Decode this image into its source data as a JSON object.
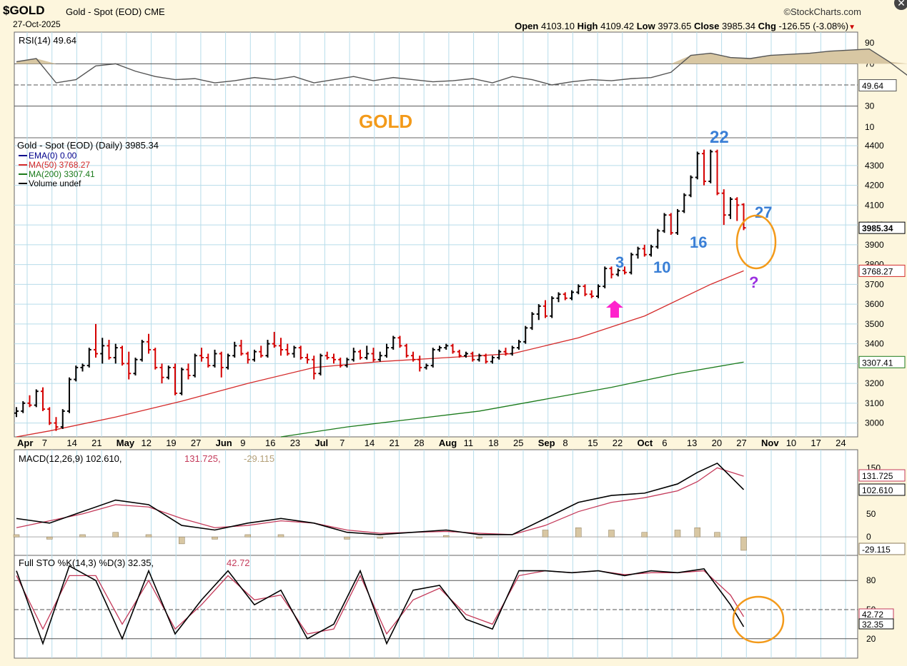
{
  "header": {
    "symbol": "$GOLD",
    "description": "Gold - Spot (EOD)",
    "exchange": "CME",
    "date": "27-Oct-2025",
    "brand": "©StockCharts.com",
    "open_label": "Open",
    "open": "4103.10",
    "high_label": "High",
    "high": "4109.42",
    "low_label": "Low",
    "low": "3973.65",
    "close_label": "Close",
    "close": "3985.34",
    "chg_label": "Chg",
    "chg": "-126.55 (-3.08%)"
  },
  "colors": {
    "background": "#fdf6dd",
    "panel": "#ffffff",
    "grid": "#b7dcea",
    "up_bar": "#000000",
    "down_bar": "#d40000",
    "ma50": "#d42a2a",
    "ma200": "#1a7a1a",
    "ema": "#00008b",
    "annotation_blue": "#3a7fd6",
    "annotation_orange": "#f39a1a",
    "arrow": "#ff22cc",
    "question": "#9b30e0",
    "rsi_fill": "#d8c7a3"
  },
  "chart_data": [
    {
      "type": "line",
      "name": "RSI panel",
      "legend": "RSI(14) 49.64",
      "value_label": "49.64",
      "ylim": [
        0,
        100
      ],
      "yticks": [
        "90",
        "70",
        "50",
        "30",
        "10"
      ],
      "levels": [
        70,
        30
      ],
      "x": [
        0,
        3,
        6,
        9,
        12,
        15,
        18,
        21,
        24,
        27,
        30,
        33,
        36,
        39,
        42,
        45,
        48,
        51,
        54,
        57,
        60,
        63,
        66,
        69,
        72,
        75,
        78,
        81,
        84,
        87,
        90,
        93,
        96,
        99,
        102,
        105,
        108,
        111,
        114,
        117,
        120,
        123,
        126,
        129,
        132,
        135,
        138,
        141,
        144
      ],
      "values": [
        72,
        75,
        52,
        55,
        68,
        70,
        63,
        58,
        55,
        56,
        52,
        54,
        57,
        55,
        58,
        52,
        55,
        58,
        54,
        57,
        55,
        53,
        54,
        56,
        52,
        58,
        55,
        50,
        53,
        55,
        54,
        56,
        57,
        62,
        78,
        80,
        76,
        75,
        78,
        79,
        80,
        82,
        83,
        84,
        72,
        58,
        50,
        52,
        49.64
      ],
      "annotation": "GOLD"
    },
    {
      "type": "line",
      "name": "Price panel",
      "legend_title": "Gold - Spot (EOD) (Daily) 3985.34",
      "legend": [
        "EMA(0) 0.00",
        "MA(50) 3768.27",
        "MA(200) 3307.41",
        "Volume undef"
      ],
      "ylim": [
        2930,
        4440
      ],
      "yticks": [
        "4400",
        "4300",
        "4200",
        "4100",
        "4000",
        "3900",
        "3800",
        "3700",
        "3600",
        "3500",
        "3400",
        "3300",
        "3200",
        "3100",
        "3000"
      ],
      "price_labels": [
        "3985.34",
        "3768.27",
        "3307.41"
      ],
      "x_tick_labels": [
        "Apr",
        "7",
        "14",
        "21",
        "May",
        "12",
        "19",
        "27",
        "Jun",
        "9",
        "16",
        "23",
        "Jul",
        "7",
        "14",
        "21",
        "28",
        "Aug",
        "11",
        "18",
        "25",
        "Sep",
        "8",
        "15",
        "22",
        "Oct",
        "6",
        "13",
        "20",
        "27",
        "Nov",
        "10",
        "17",
        "24"
      ],
      "ohlc": [
        [
          0,
          3050,
          3080,
          3030,
          3060
        ],
        [
          1,
          3060,
          3110,
          3050,
          3100
        ],
        [
          2,
          3100,
          3140,
          3080,
          3090
        ],
        [
          3,
          3090,
          3170,
          3080,
          3160
        ],
        [
          4,
          3160,
          3180,
          3060,
          3070
        ],
        [
          5,
          3070,
          3080,
          2990,
          3000
        ],
        [
          6,
          3000,
          3030,
          2960,
          2980
        ],
        [
          7,
          2980,
          3070,
          2970,
          3060
        ],
        [
          8,
          3060,
          3230,
          3050,
          3220
        ],
        [
          9,
          3220,
          3290,
          3210,
          3280
        ],
        [
          10,
          3280,
          3300,
          3260,
          3290
        ],
        [
          11,
          3290,
          3380,
          3280,
          3370
        ],
        [
          12,
          3370,
          3500,
          3330,
          3350
        ],
        [
          13,
          3350,
          3430,
          3300,
          3390
        ],
        [
          14,
          3390,
          3420,
          3320,
          3330
        ],
        [
          15,
          3330,
          3400,
          3300,
          3380
        ],
        [
          16,
          3380,
          3390,
          3290,
          3300
        ],
        [
          17,
          3300,
          3360,
          3220,
          3250
        ],
        [
          18,
          3250,
          3330,
          3240,
          3320
        ],
        [
          19,
          3320,
          3420,
          3310,
          3410
        ],
        [
          20,
          3410,
          3450,
          3350,
          3370
        ],
        [
          21,
          3370,
          3380,
          3270,
          3280
        ],
        [
          22,
          3280,
          3300,
          3200,
          3230
        ],
        [
          23,
          3230,
          3290,
          3220,
          3280
        ],
        [
          24,
          3280,
          3300,
          3140,
          3150
        ],
        [
          25,
          3150,
          3280,
          3140,
          3270
        ],
        [
          26,
          3270,
          3300,
          3220,
          3240
        ],
        [
          27,
          3240,
          3350,
          3230,
          3340
        ],
        [
          28,
          3340,
          3380,
          3310,
          3330
        ],
        [
          29,
          3330,
          3350,
          3280,
          3290
        ],
        [
          30,
          3290,
          3370,
          3280,
          3350
        ],
        [
          31,
          3350,
          3360,
          3230,
          3280
        ],
        [
          32,
          3280,
          3350,
          3270,
          3340
        ],
        [
          33,
          3340,
          3410,
          3330,
          3390
        ],
        [
          34,
          3390,
          3420,
          3340,
          3350
        ],
        [
          35,
          3350,
          3360,
          3300,
          3320
        ],
        [
          36,
          3320,
          3370,
          3310,
          3360
        ],
        [
          37,
          3360,
          3390,
          3330,
          3340
        ],
        [
          38,
          3340,
          3420,
          3330,
          3400
        ],
        [
          39,
          3400,
          3460,
          3380,
          3390
        ],
        [
          40,
          3390,
          3430,
          3340,
          3370
        ],
        [
          41,
          3370,
          3400,
          3340,
          3350
        ],
        [
          42,
          3350,
          3390,
          3330,
          3380
        ],
        [
          43,
          3380,
          3390,
          3320,
          3330
        ],
        [
          44,
          3330,
          3350,
          3300,
          3320
        ],
        [
          45,
          3320,
          3340,
          3220,
          3250
        ],
        [
          46,
          3250,
          3350,
          3240,
          3340
        ],
        [
          47,
          3340,
          3360,
          3320,
          3330
        ],
        [
          48,
          3330,
          3350,
          3300,
          3320
        ],
        [
          49,
          3320,
          3330,
          3280,
          3290
        ],
        [
          50,
          3290,
          3330,
          3280,
          3320
        ],
        [
          51,
          3320,
          3380,
          3310,
          3360
        ],
        [
          52,
          3360,
          3370,
          3320,
          3330
        ],
        [
          53,
          3330,
          3390,
          3320,
          3350
        ],
        [
          54,
          3350,
          3380,
          3310,
          3320
        ],
        [
          55,
          3320,
          3360,
          3310,
          3340
        ],
        [
          56,
          3340,
          3400,
          3330,
          3380
        ],
        [
          57,
          3380,
          3440,
          3370,
          3430
        ],
        [
          58,
          3430,
          3440,
          3380,
          3390
        ],
        [
          59,
          3390,
          3400,
          3330,
          3340
        ],
        [
          60,
          3340,
          3360,
          3310,
          3320
        ],
        [
          61,
          3320,
          3340,
          3260,
          3280
        ],
        [
          62,
          3280,
          3300,
          3270,
          3290
        ],
        [
          63,
          3290,
          3380,
          3280,
          3370
        ],
        [
          64,
          3370,
          3390,
          3360,
          3380
        ],
        [
          65,
          3380,
          3400,
          3370,
          3390
        ],
        [
          66,
          3390,
          3400,
          3350,
          3360
        ],
        [
          67,
          3360,
          3370,
          3330,
          3340
        ],
        [
          68,
          3340,
          3360,
          3330,
          3350
        ],
        [
          69,
          3350,
          3360,
          3310,
          3320
        ],
        [
          70,
          3320,
          3350,
          3310,
          3340
        ],
        [
          71,
          3340,
          3350,
          3300,
          3310
        ],
        [
          72,
          3310,
          3340,
          3300,
          3330
        ],
        [
          73,
          3330,
          3370,
          3320,
          3360
        ],
        [
          74,
          3360,
          3380,
          3340,
          3350
        ],
        [
          75,
          3350,
          3390,
          3340,
          3380
        ],
        [
          76,
          3380,
          3420,
          3370,
          3410
        ],
        [
          77,
          3410,
          3490,
          3400,
          3480
        ],
        [
          78,
          3480,
          3560,
          3470,
          3550
        ],
        [
          79,
          3550,
          3600,
          3520,
          3590
        ],
        [
          80,
          3590,
          3620,
          3530,
          3540
        ],
        [
          81,
          3540,
          3640,
          3530,
          3630
        ],
        [
          82,
          3630,
          3660,
          3610,
          3650
        ],
        [
          83,
          3650,
          3660,
          3620,
          3630
        ],
        [
          84,
          3630,
          3670,
          3620,
          3660
        ],
        [
          85,
          3660,
          3700,
          3650,
          3690
        ],
        [
          86,
          3690,
          3700,
          3640,
          3650
        ],
        [
          87,
          3650,
          3670,
          3630,
          3640
        ],
        [
          88,
          3640,
          3700,
          3630,
          3690
        ],
        [
          89,
          3690,
          3790,
          3680,
          3780
        ],
        [
          90,
          3780,
          3790,
          3730,
          3750
        ],
        [
          91,
          3750,
          3780,
          3740,
          3770
        ],
        [
          92,
          3770,
          3790,
          3750,
          3760
        ],
        [
          93,
          3760,
          3860,
          3750,
          3850
        ],
        [
          94,
          3850,
          3890,
          3830,
          3880
        ],
        [
          95,
          3880,
          3900,
          3840,
          3850
        ],
        [
          96,
          3850,
          3900,
          3840,
          3890
        ],
        [
          97,
          3890,
          3980,
          3880,
          3970
        ],
        [
          98,
          3970,
          4060,
          3960,
          4050
        ],
        [
          99,
          4050,
          4060,
          3950,
          3960
        ],
        [
          100,
          3960,
          4080,
          3950,
          4070
        ],
        [
          101,
          4070,
          4160,
          4060,
          4150
        ],
        [
          102,
          4150,
          4250,
          4140,
          4240
        ],
        [
          103,
          4240,
          4370,
          4230,
          4360
        ],
        [
          104,
          4360,
          4380,
          4200,
          4220
        ],
        [
          105,
          4220,
          4380,
          4210,
          4370
        ],
        [
          106,
          4370,
          4380,
          4150,
          4160
        ],
        [
          107,
          4160,
          4180,
          4000,
          4050
        ],
        [
          108,
          4050,
          4140,
          4030,
          4130
        ],
        [
          109,
          4130,
          4140,
          4020,
          4100
        ],
        [
          110,
          4103.1,
          4109.42,
          3973.65,
          3985.34
        ]
      ],
      "ma50": [
        [
          0,
          2930
        ],
        [
          5,
          2960
        ],
        [
          15,
          3030
        ],
        [
          25,
          3110
        ],
        [
          35,
          3200
        ],
        [
          45,
          3280
        ],
        [
          55,
          3310
        ],
        [
          65,
          3330
        ],
        [
          75,
          3350
        ],
        [
          85,
          3430
        ],
        [
          95,
          3540
        ],
        [
          105,
          3700
        ],
        [
          110,
          3768.27
        ]
      ],
      "ma200": [
        [
          40,
          2930
        ],
        [
          50,
          2980
        ],
        [
          60,
          3020
        ],
        [
          70,
          3060
        ],
        [
          80,
          3120
        ],
        [
          90,
          3180
        ],
        [
          100,
          3250
        ],
        [
          110,
          3307.41
        ]
      ],
      "annotations": {
        "count_3": "3",
        "count_10": "10",
        "count_16": "16",
        "count_22": "22",
        "count_27": "27",
        "question": "?"
      }
    },
    {
      "type": "line",
      "name": "MACD panel",
      "legend_prefix": "MACD(12,26,9) 102.610,",
      "legend_signal": "131.725,",
      "legend_hist": "-29.115",
      "ylim": [
        -40,
        180
      ],
      "yticks": [
        "150",
        "100",
        "50",
        "0"
      ],
      "value_labels": [
        "131.725",
        "102.610",
        "-29.115"
      ],
      "x": [
        0,
        5,
        10,
        15,
        20,
        25,
        30,
        35,
        40,
        45,
        50,
        55,
        60,
        65,
        70,
        75,
        80,
        85,
        90,
        95,
        100,
        103,
        106,
        110
      ],
      "macd": [
        40,
        30,
        55,
        80,
        70,
        25,
        15,
        30,
        40,
        30,
        10,
        5,
        10,
        15,
        5,
        5,
        40,
        75,
        90,
        95,
        115,
        140,
        160,
        102.61
      ],
      "signal": [
        20,
        35,
        50,
        70,
        65,
        40,
        20,
        25,
        35,
        30,
        15,
        8,
        10,
        12,
        8,
        5,
        25,
        55,
        75,
        85,
        100,
        120,
        150,
        131.725
      ],
      "histogram": [
        5,
        -5,
        5,
        10,
        5,
        -15,
        -5,
        5,
        5,
        0,
        -5,
        -3,
        0,
        3,
        -3,
        0,
        15,
        20,
        15,
        10,
        15,
        20,
        10,
        -29.115
      ]
    },
    {
      "type": "line",
      "name": "Stochastic panel",
      "legend_prefix": "Full STO %K(14,3) %D(3) 32.35,",
      "legend_d": "42.72",
      "ylim": [
        0,
        100
      ],
      "yticks": [
        "80",
        "50",
        "20"
      ],
      "levels": [
        80,
        20
      ],
      "value_labels": [
        "42.72",
        "32.35"
      ],
      "x": [
        0,
        4,
        8,
        12,
        16,
        20,
        24,
        28,
        32,
        36,
        40,
        44,
        48,
        52,
        56,
        60,
        64,
        68,
        72,
        76,
        80,
        84,
        88,
        92,
        96,
        100,
        104,
        108,
        110
      ],
      "k": [
        90,
        15,
        95,
        80,
        20,
        90,
        25,
        60,
        90,
        55,
        70,
        20,
        35,
        90,
        15,
        70,
        75,
        40,
        30,
        90,
        90,
        88,
        90,
        85,
        90,
        88,
        92,
        55,
        32.35
      ],
      "d": [
        85,
        30,
        85,
        85,
        35,
        80,
        30,
        55,
        85,
        60,
        65,
        25,
        30,
        85,
        25,
        60,
        72,
        45,
        35,
        85,
        90,
        88,
        90,
        86,
        88,
        88,
        90,
        65,
        42.72
      ]
    }
  ]
}
